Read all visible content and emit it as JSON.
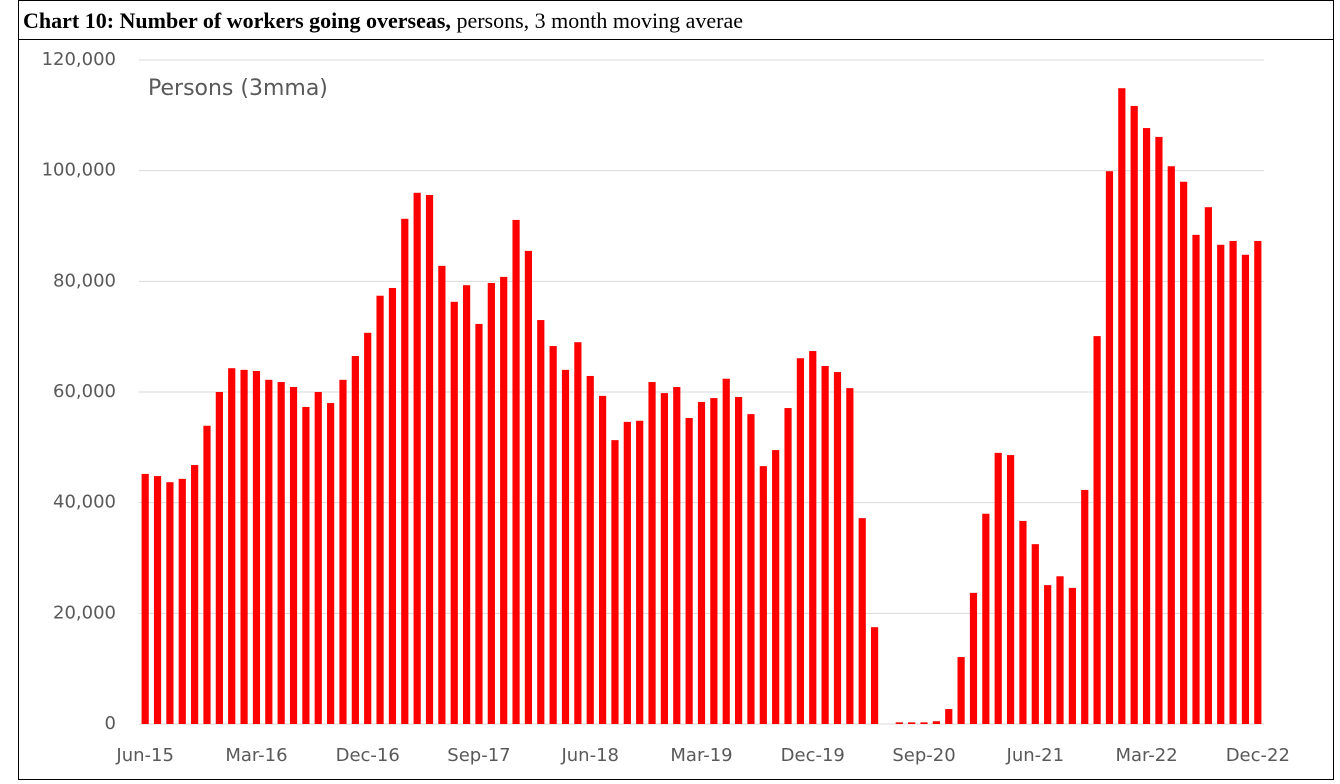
{
  "chart_data": {
    "type": "bar",
    "title_bold": "Chart 10: Number of workers going overseas,",
    "title_rest": "persons, 3 month moving averae",
    "annotation": "Persons (3mma)",
    "categories": [
      "Jun-15",
      null,
      null,
      null,
      null,
      null,
      null,
      null,
      null,
      "Mar-16",
      null,
      null,
      null,
      null,
      null,
      null,
      null,
      null,
      "Dec-16",
      null,
      null,
      null,
      null,
      null,
      null,
      null,
      null,
      "Sep-17",
      null,
      null,
      null,
      null,
      null,
      null,
      null,
      null,
      "Jun-18",
      null,
      null,
      null,
      null,
      null,
      null,
      null,
      null,
      "Mar-19",
      null,
      null,
      null,
      null,
      null,
      null,
      null,
      null,
      "Dec-19",
      null,
      null,
      null,
      null,
      null,
      null,
      null,
      null,
      "Sep-20",
      null,
      null,
      null,
      null,
      null,
      null,
      null,
      null,
      "Jun-21",
      null,
      null,
      null,
      null,
      null,
      null,
      null,
      null,
      "Mar-22",
      null,
      null,
      null,
      null,
      null,
      null,
      null,
      null,
      "Dec-22"
    ],
    "values": [
      45200,
      44800,
      43700,
      44300,
      46800,
      53900,
      60000,
      64300,
      64000,
      63800,
      62200,
      61800,
      60900,
      57300,
      60000,
      58000,
      62200,
      66500,
      70700,
      77400,
      78800,
      91300,
      96000,
      95600,
      82800,
      76300,
      79300,
      72300,
      79700,
      80800,
      91100,
      85500,
      73000,
      68300,
      64000,
      69000,
      62900,
      59300,
      51300,
      54600,
      54800,
      61800,
      59800,
      60900,
      55300,
      58200,
      58900,
      62400,
      59100,
      56000,
      46600,
      49500,
      57100,
      66100,
      67400,
      64700,
      63600,
      60700,
      37200,
      17500,
      0,
      300,
      300,
      300,
      500,
      2700,
      12100,
      23700,
      38000,
      49000,
      48600,
      36700,
      32500,
      25100,
      26700,
      24600,
      42300,
      70100,
      99900,
      114900,
      111700,
      107700,
      106100,
      100800,
      98000,
      88400,
      93400,
      86600,
      87300,
      84800,
      87300
    ],
    "color": "#ff0000",
    "ylim": [
      0,
      120000
    ],
    "yticks": [
      0,
      {
        "value": 20000,
        "label": "20,000"
      },
      {
        "value": 40000,
        "label": "40,000"
      },
      {
        "value": 60000,
        "label": "60,000"
      },
      {
        "value": 80000,
        "label": "80,000"
      },
      {
        "value": 100000,
        "label": "100,000"
      },
      {
        "value": 120000,
        "label": "120,000"
      }
    ],
    "grid": true
  }
}
